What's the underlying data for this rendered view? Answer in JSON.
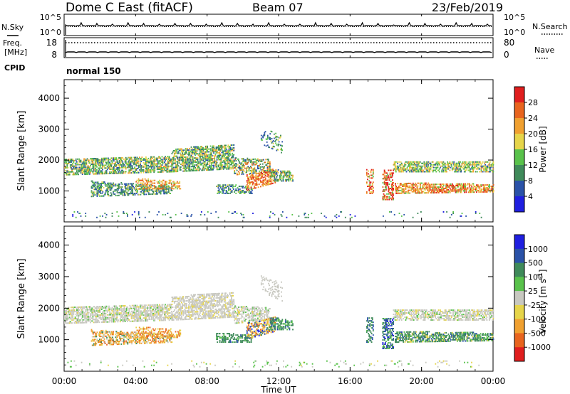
{
  "header": {
    "station": "Dome C East (fitACF)",
    "beam": "Beam 07",
    "date": "23/Feb/2019"
  },
  "colors": {
    "power_scale": [
      "#1f1fe0",
      "#2a52a8",
      "#3f8a5a",
      "#59c24b",
      "#e6d54a",
      "#f0a030",
      "#e8641e",
      "#e01e1e"
    ],
    "velocity_scale": [
      "#e01e1e",
      "#e8641e",
      "#f0a030",
      "#e6d54a",
      "#c8c8c0",
      "#59c24b",
      "#3f8a5a",
      "#2a52a8",
      "#1f1fe0"
    ]
  },
  "chart_data": [
    {
      "type": "line",
      "panel": "sky-search-noise",
      "left_label": "N.Sky",
      "right_label": "N.Search",
      "left_ticks": [
        "10^5",
        "10^0"
      ],
      "right_ticks": [
        "10^5",
        "10^0"
      ]
    },
    {
      "type": "line",
      "panel": "frequency-nave",
      "left_label_lines": [
        "Freq.",
        "[MHz]"
      ],
      "right_label": "Nave",
      "left_ticks": [
        "18",
        "8"
      ],
      "right_ticks": [
        "80",
        "0"
      ]
    },
    {
      "type": "scatter",
      "panel": "cpid",
      "label": "CPID",
      "mode": "normal 150"
    },
    {
      "type": "heatmap",
      "panel": "power",
      "ylabel": "Slant Range [km]",
      "yticks": [
        1000,
        2000,
        3000,
        4000
      ],
      "ylim": [
        0,
        4600
      ],
      "xlim_hours": [
        0,
        24
      ],
      "colorbar": {
        "label": "Power [dB]",
        "ticks": [
          "28",
          "24",
          "20",
          "16",
          "12",
          "8",
          "4"
        ],
        "levels": 8
      }
    },
    {
      "type": "heatmap",
      "panel": "velocity",
      "ylabel": "Slant Range [km]",
      "yticks": [
        1000,
        2000,
        3000,
        4000
      ],
      "ylim": [
        0,
        4600
      ],
      "xlim_hours": [
        0,
        24
      ],
      "colorbar": {
        "label": "Velocity [m s-1]",
        "label_parts": [
          "Velocity  [m s",
          "-1",
          "]"
        ],
        "ticks": [
          "1000",
          "500",
          "100",
          "25",
          "-25",
          "-100",
          "-500",
          "-1000"
        ],
        "levels": 9
      }
    },
    {
      "type": "axis",
      "panel": "time-axis",
      "xticks": [
        "00:00",
        "04:00",
        "08:00",
        "12:00",
        "16:00",
        "20:00",
        "00:00"
      ],
      "xlabel": "Time UT"
    }
  ]
}
